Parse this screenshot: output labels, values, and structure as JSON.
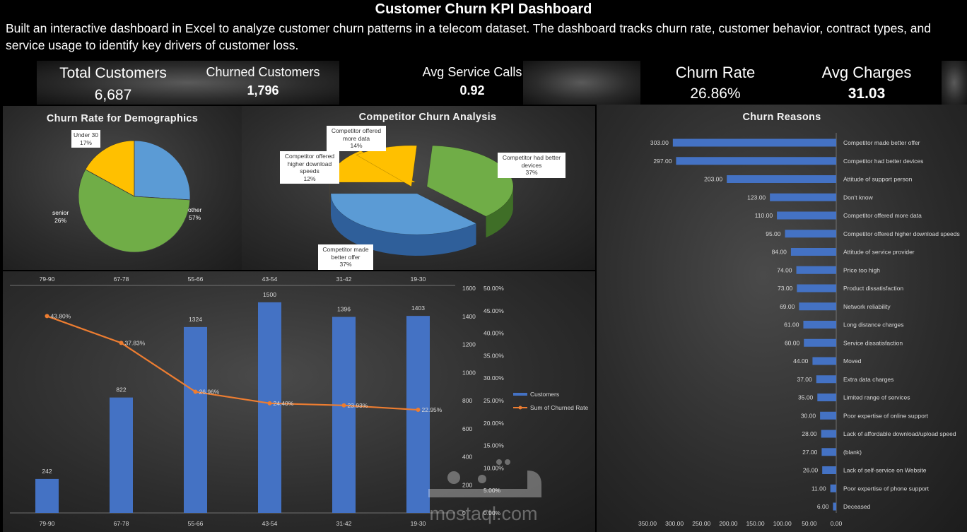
{
  "header": {
    "title": "Customer Churn KPI Dashboard",
    "subtitle": "Built an interactive dashboard in Excel to analyze customer churn patterns in a telecom dataset. The dashboard tracks churn rate, customer behavior, contract types, and service usage to identify key drivers of customer loss."
  },
  "kpis": {
    "total_customers_label": "Total Customers",
    "total_customers_value": "6,687",
    "churned_label": "Churned Customers",
    "churned_value": "1,796",
    "service_calls_label": "Avg Service Calls",
    "service_calls_value": "0.92",
    "churn_rate_label": "Churn Rate",
    "churn_rate_value": "26.86%",
    "avg_charges_label": "Avg Charges",
    "avg_charges_value": "31.03"
  },
  "colors": {
    "bar_blue": "#4472C4",
    "line_orange": "#ED7D31",
    "pie_green": "#70AD47",
    "pie_blue": "#5B9BD5",
    "pie_yellow": "#FFC000"
  },
  "watermark": {
    "text": "mostaql.com"
  },
  "chart_data": [
    {
      "id": "demographics",
      "type": "pie",
      "title": "Churn Rate for Demographics",
      "slices": [
        {
          "label": "Under 30",
          "value": 17,
          "display": "17%"
        },
        {
          "label": "senior",
          "value": 26,
          "display": "26%"
        },
        {
          "label": "other",
          "value": 57,
          "display": "57%"
        }
      ]
    },
    {
      "id": "competitor",
      "type": "pie",
      "title": "Competitor Churn Analysis",
      "slices": [
        {
          "label": "Competitor offered more data",
          "value": 14,
          "display": "14%"
        },
        {
          "label": "Competitor offered higher download speeds",
          "value": 12,
          "display": "12%"
        },
        {
          "label": "Competitor had better devices",
          "value": 37,
          "display": "37%"
        },
        {
          "label": "Competitor made better offer",
          "value": 37,
          "display": "37%"
        }
      ]
    },
    {
      "id": "age_groups",
      "type": "bar",
      "categories": [
        "79-90",
        "67-78",
        "55-66",
        "43-54",
        "31-42",
        "19-30"
      ],
      "series": [
        {
          "name": "Customers",
          "type": "bar",
          "values": [
            242,
            822,
            1324,
            1500,
            1396,
            1403
          ],
          "labels": [
            "242",
            "822",
            "1324",
            "1500",
            "1396",
            "1403"
          ]
        },
        {
          "name": "Sum of Churned Rate",
          "type": "line",
          "values": [
            43.8,
            37.83,
            26.96,
            24.4,
            23.93,
            22.95
          ],
          "labels": [
            "43.80%",
            "37.83%",
            "26.96%",
            "24.40%",
            "23.93%",
            "22.95%"
          ]
        }
      ],
      "y_left": {
        "ylim": [
          0,
          1600
        ],
        "ticks": [
          "1600",
          "1400",
          "1200",
          "1000",
          "800",
          "600",
          "400",
          "200",
          "0"
        ]
      },
      "y_right": {
        "ylim": [
          0,
          50
        ],
        "ticks": [
          "50.00%",
          "45.00%",
          "40.00%",
          "35.00%",
          "30.00%",
          "25.00%",
          "20.00%",
          "15.00%",
          "10.00%",
          "5.00%",
          "0.00%"
        ]
      },
      "legend": "right"
    },
    {
      "id": "churn_reasons",
      "type": "bar",
      "orientation": "horizontal",
      "title": "Churn Reasons",
      "categories": [
        "Competitor made better offer",
        "Competitor had better devices",
        "Attitude of support person",
        "Don't know",
        "Competitor offered more data",
        "Competitor offered higher download speeds",
        "Attitude of service provider",
        "Price too high",
        "Product dissatisfaction",
        "Network reliability",
        "Long distance charges",
        "Service dissatisfaction",
        "Moved",
        "Extra data charges",
        "Limited range of services",
        "Poor expertise of online support",
        "Lack of affordable download/upload speed",
        "(blank)",
        "Lack of self-service on Website",
        "Poor expertise of phone support",
        "Deceased"
      ],
      "values": [
        303,
        297,
        203,
        123,
        110,
        95,
        84,
        74,
        73,
        69,
        61,
        60,
        44,
        37,
        35,
        30,
        28,
        27,
        26,
        11,
        6
      ],
      "labels": [
        "303.00",
        "297.00",
        "203.00",
        "123.00",
        "110.00",
        "95.00",
        "84.00",
        "74.00",
        "73.00",
        "69.00",
        "61.00",
        "60.00",
        "44.00",
        "37.00",
        "35.00",
        "30.00",
        "28.00",
        "27.00",
        "26.00",
        "11.00",
        "6.00"
      ],
      "x_axis": {
        "ticks": [
          "350.00",
          "300.00",
          "250.00",
          "200.00",
          "150.00",
          "100.00",
          "50.00",
          "0.00"
        ],
        "reversed": true,
        "xlim": [
          0,
          350
        ]
      }
    }
  ]
}
